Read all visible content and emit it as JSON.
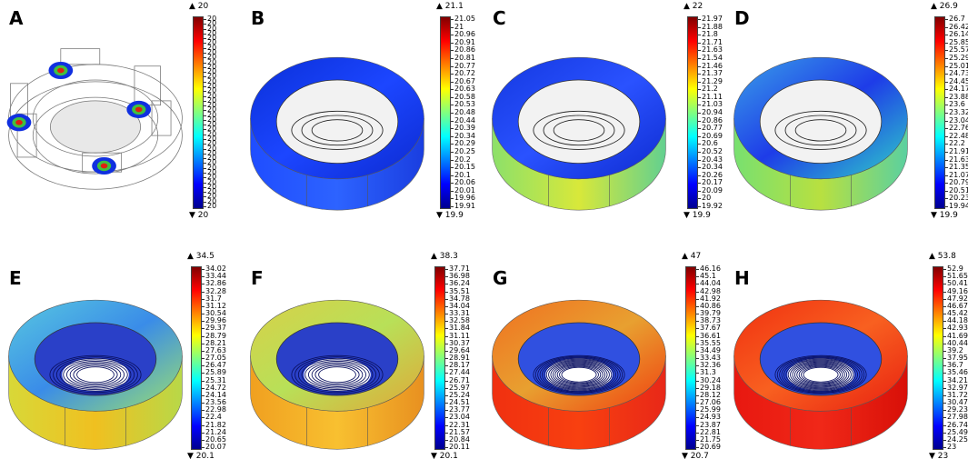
{
  "panels": [
    {
      "letter": "A",
      "max": "20",
      "min": "20",
      "ticks": [
        "20",
        "20",
        "20",
        "20",
        "20",
        "20",
        "20",
        "20",
        "20",
        "20",
        "20",
        "20",
        "20",
        "20",
        "20",
        "20",
        "20",
        "20",
        "20",
        "20",
        "20",
        "20",
        "20",
        "20",
        "20",
        "20",
        "20",
        "20",
        "20",
        "20",
        "20",
        "20",
        "20",
        "20",
        "20",
        "20",
        "20",
        "20",
        "20",
        "20"
      ],
      "style": "wire"
    },
    {
      "letter": "B",
      "max": "21.1",
      "min": "19.9",
      "ticks": [
        "21.05",
        "21",
        "20.96",
        "20.91",
        "20.86",
        "20.81",
        "20.77",
        "20.72",
        "20.67",
        "20.63",
        "20.58",
        "20.53",
        "20.48",
        "20.44",
        "20.39",
        "20.34",
        "20.29",
        "20.25",
        "20.2",
        "20.15",
        "20.1",
        "20.06",
        "20.01",
        "19.96",
        "19.91"
      ],
      "style": "blue"
    },
    {
      "letter": "C",
      "max": "22",
      "min": "19.9",
      "ticks": [
        "21.97",
        "21.88",
        "21.8",
        "21.71",
        "21.63",
        "21.54",
        "21.46",
        "21.37",
        "21.29",
        "21.2",
        "21.11",
        "21.03",
        "20.94",
        "20.86",
        "20.77",
        "20.69",
        "20.6",
        "20.52",
        "20.43",
        "20.34",
        "20.26",
        "20.17",
        "20.09",
        "20",
        "19.92"
      ],
      "style": "bluegreen"
    },
    {
      "letter": "D",
      "max": "26.9",
      "min": "19.9",
      "ticks": [
        "26.7",
        "26.42",
        "26.14",
        "25.85",
        "25.57",
        "25.29",
        "25.01",
        "24.73",
        "24.45",
        "24.17",
        "23.88",
        "23.6",
        "23.32",
        "23.04",
        "22.76",
        "22.48",
        "22.2",
        "21.91",
        "21.63",
        "21.35",
        "21.07",
        "20.79",
        "20.51",
        "20.23",
        "19.94"
      ],
      "style": "bluegreen2"
    },
    {
      "letter": "E",
      "max": "34.5",
      "min": "20.1",
      "ticks": [
        "34.02",
        "33.44",
        "32.86",
        "32.28",
        "31.7",
        "31.12",
        "30.54",
        "29.96",
        "29.37",
        "28.79",
        "28.21",
        "27.63",
        "27.05",
        "26.47",
        "25.89",
        "25.31",
        "24.72",
        "24.14",
        "23.56",
        "22.98",
        "22.4",
        "21.82",
        "21.24",
        "20.65",
        "20.07"
      ],
      "style": "cyanyellow"
    },
    {
      "letter": "F",
      "max": "38.3",
      "min": "20.1",
      "ticks": [
        "37.71",
        "36.98",
        "36.24",
        "35.51",
        "34.78",
        "34.04",
        "33.31",
        "32.58",
        "31.84",
        "31.11",
        "30.37",
        "29.64",
        "28.91",
        "28.17",
        "27.44",
        "26.71",
        "25.97",
        "25.24",
        "24.51",
        "23.77",
        "23.04",
        "22.31",
        "21.57",
        "20.84",
        "20.11"
      ],
      "style": "yelloworange"
    },
    {
      "letter": "G",
      "max": "47",
      "min": "20.7",
      "ticks": [
        "46.16",
        "45.1",
        "44.04",
        "42.98",
        "41.92",
        "40.86",
        "39.79",
        "38.73",
        "37.67",
        "36.61",
        "35.55",
        "34.49",
        "33.43",
        "32.36",
        "31.3",
        "30.24",
        "29.18",
        "28.12",
        "27.06",
        "25.99",
        "24.93",
        "23.87",
        "22.81",
        "21.75",
        "20.69"
      ],
      "style": "orangered"
    },
    {
      "letter": "H",
      "max": "53.8",
      "min": "23",
      "ticks": [
        "52.9",
        "51.65",
        "50.41",
        "49.16",
        "47.92",
        "46.67",
        "45.42",
        "44.18",
        "42.93",
        "41.69",
        "40.44",
        "39.2",
        "37.95",
        "36.7",
        "35.46",
        "34.21",
        "32.97",
        "31.72",
        "30.47",
        "29.23",
        "27.98",
        "26.74",
        "25.49",
        "24.25",
        "23"
      ],
      "style": "red"
    }
  ],
  "colors": {
    "jet": [
      "#00008f",
      "#0000ff",
      "#0080ff",
      "#00ffff",
      "#80ff80",
      "#ffff00",
      "#ff8000",
      "#ff0000",
      "#800000"
    ]
  }
}
